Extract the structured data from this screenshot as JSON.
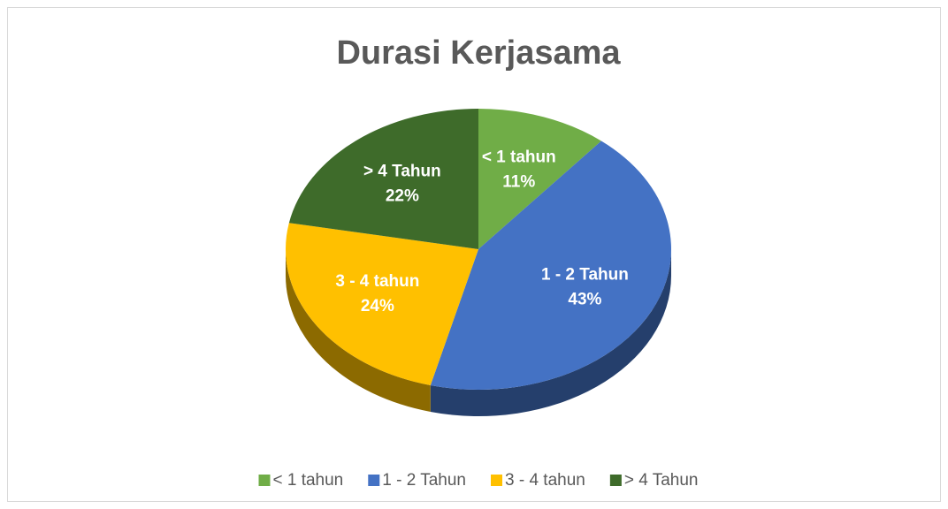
{
  "chart_data": {
    "type": "pie",
    "title": "Durasi Kerjasama",
    "categories": [
      "< 1 tahun",
      "1 - 2 Tahun",
      "3 - 4 tahun",
      "> 4 Tahun"
    ],
    "values": [
      11,
      43,
      24,
      22
    ],
    "value_labels": [
      "11%",
      "43%",
      "24%",
      "22%"
    ],
    "colors": [
      "#70ad47",
      "#4472c4",
      "#ffc000",
      "#3e6b2a"
    ],
    "legend": "bottom"
  }
}
